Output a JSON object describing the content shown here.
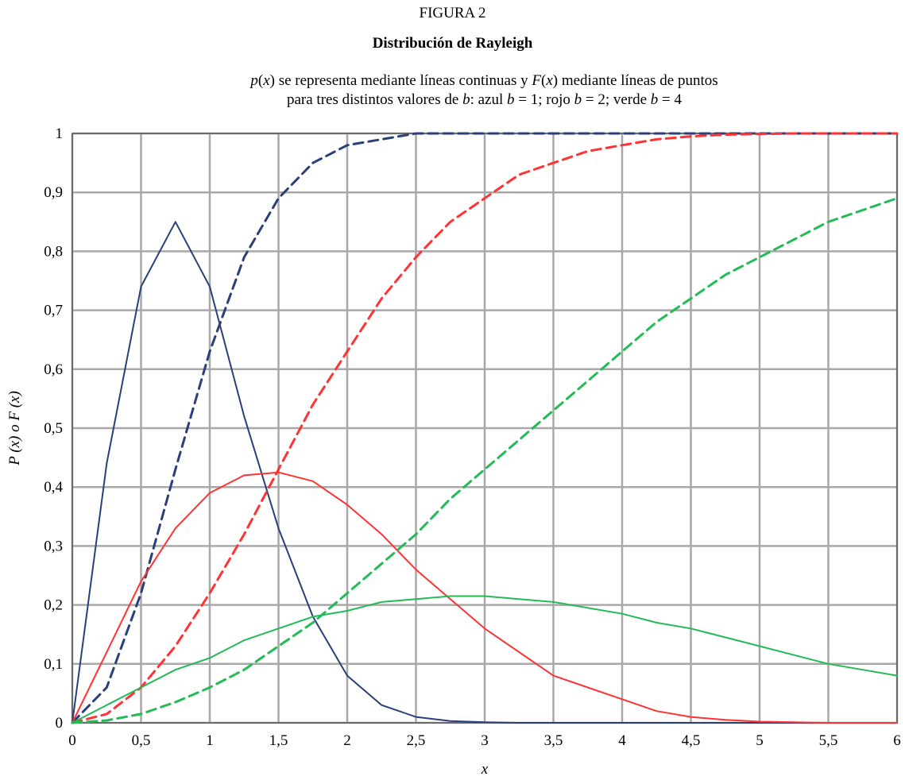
{
  "figure": {
    "number": "FIGURA 2",
    "title": "Distribución de Rayleigh",
    "caption": {
      "l1_p": "p",
      "l1_x1": "x",
      "l1_mid": ") se representa mediante líneas continuas y ",
      "l1_F": "F",
      "l1_x2": "x",
      "l1_end": ") mediante líneas de puntos",
      "l2_start": "para tres distintos valores de ",
      "l2_b1": "b",
      "l2_azul": ": azul ",
      "l2_b2": "b",
      "l2_eq1": " = 1; rojo ",
      "l2_b3": "b",
      "l2_eq2": " = 2; verde ",
      "l2_b4": "b",
      "l2_eq3": " = 4"
    }
  },
  "chart_data": {
    "type": "line",
    "title": "",
    "xlabel": "x",
    "ylabel": "P (x) o F (x)",
    "xlim": [
      0,
      6
    ],
    "ylim": [
      0,
      1
    ],
    "grid": true,
    "x_ticks": [
      "0",
      "0,5",
      "1",
      "1,5",
      "2",
      "2,5",
      "3",
      "3,5",
      "4",
      "4,5",
      "5",
      "5,5",
      "6"
    ],
    "y_ticks": [
      "0",
      "0,1",
      "0,2",
      "0,3",
      "0,4",
      "0,5",
      "0,6",
      "0,7",
      "0,8",
      "0,9",
      "1"
    ],
    "x": [
      0,
      0.25,
      0.5,
      0.75,
      1,
      1.25,
      1.5,
      1.75,
      2,
      2.25,
      2.5,
      2.75,
      3,
      3.25,
      3.5,
      3.75,
      4,
      4.25,
      4.5,
      4.75,
      5,
      5.25,
      5.5,
      5.75,
      6
    ],
    "series": [
      {
        "color": "#2b3f7a",
        "dash": false,
        "values": [
          0,
          0.44,
          0.74,
          0.85,
          0.74,
          0.52,
          0.33,
          0.18,
          0.08,
          0.03,
          0.01,
          0.003,
          0.001,
          0,
          0,
          0,
          0,
          0,
          0,
          0,
          0,
          0,
          0,
          0,
          0
        ]
      },
      {
        "color": "#2b3f7a",
        "dash": true,
        "values": [
          0,
          0.06,
          0.22,
          0.43,
          0.63,
          0.79,
          0.89,
          0.95,
          0.98,
          0.99,
          1.0,
          1.0,
          1.0,
          1.0,
          1.0,
          1.0,
          1.0,
          1.0,
          1.0,
          1.0,
          1.0,
          1.0,
          1.0,
          1.0,
          1.0
        ]
      },
      {
        "color": "#ff3333",
        "dash": false,
        "values": [
          0,
          0.12,
          0.24,
          0.33,
          0.39,
          0.42,
          0.425,
          0.41,
          0.37,
          0.32,
          0.26,
          0.21,
          0.16,
          0.12,
          0.08,
          0.06,
          0.04,
          0.02,
          0.01,
          0.005,
          0.002,
          0.001,
          0,
          0,
          0
        ]
      },
      {
        "color": "#ff3333",
        "dash": true,
        "values": [
          0,
          0.015,
          0.06,
          0.13,
          0.22,
          0.32,
          0.43,
          0.54,
          0.63,
          0.72,
          0.79,
          0.85,
          0.89,
          0.93,
          0.95,
          0.97,
          0.98,
          0.99,
          0.995,
          0.998,
          0.999,
          1.0,
          1.0,
          1.0,
          1.0
        ]
      },
      {
        "color": "#22bb55",
        "dash": false,
        "values": [
          0,
          0.03,
          0.06,
          0.09,
          0.11,
          0.14,
          0.16,
          0.18,
          0.19,
          0.205,
          0.21,
          0.215,
          0.215,
          0.21,
          0.205,
          0.195,
          0.185,
          0.17,
          0.16,
          0.145,
          0.13,
          0.115,
          0.1,
          0.09,
          0.08
        ]
      },
      {
        "color": "#22bb55",
        "dash": true,
        "values": [
          0,
          0.004,
          0.015,
          0.035,
          0.06,
          0.09,
          0.13,
          0.17,
          0.22,
          0.27,
          0.32,
          0.38,
          0.43,
          0.48,
          0.53,
          0.58,
          0.63,
          0.68,
          0.72,
          0.76,
          0.79,
          0.82,
          0.85,
          0.87,
          0.89
        ]
      }
    ]
  }
}
